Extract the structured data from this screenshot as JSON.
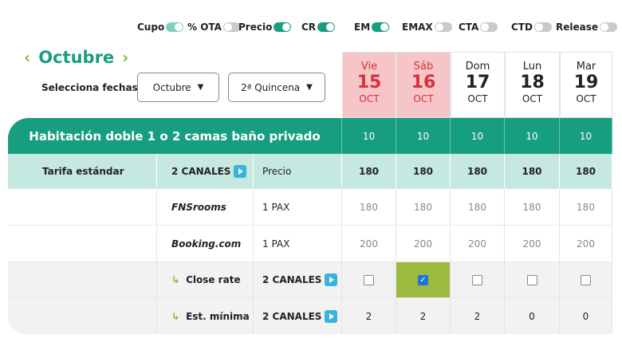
{
  "toggles": [
    {
      "label": "Cupo",
      "state": "on-light"
    },
    {
      "label": "% OTA",
      "state": "off"
    },
    {
      "label": "Precio",
      "state": "on"
    },
    {
      "label": "CR",
      "state": "on"
    },
    {
      "label": "EM",
      "state": "on"
    },
    {
      "label": "EMAX",
      "state": "off"
    },
    {
      "label": "CTA",
      "state": "off"
    },
    {
      "label": "CTD",
      "state": "off"
    },
    {
      "label": "Release",
      "state": "off"
    }
  ],
  "month": {
    "prev_icon": "chevron-left-icon",
    "label": "Octubre",
    "next_icon": "chevron-right-icon"
  },
  "select_label": "Selecciona fechas",
  "month_select": "Octubre",
  "period_select": "2ª Quincena",
  "days": [
    {
      "dow": "Vie",
      "num": "15",
      "mon": "OCT",
      "weekend": true
    },
    {
      "dow": "Sáb",
      "num": "16",
      "mon": "OCT",
      "weekend": true
    },
    {
      "dow": "Dom",
      "num": "17",
      "mon": "OCT"
    },
    {
      "dow": "Lun",
      "num": "18",
      "mon": "OCT"
    },
    {
      "dow": "Mar",
      "num": "19",
      "mon": "OCT"
    }
  ],
  "room": {
    "name": "Habitación doble 1 o 2 camas baño privado",
    "cupo": [
      "10",
      "10",
      "10",
      "10",
      "10"
    ]
  },
  "rate": {
    "name": "Tarifa estándar",
    "channels": "2 CANALES",
    "field": "Precio",
    "values": [
      "180",
      "180",
      "180",
      "180",
      "180"
    ]
  },
  "channels": [
    {
      "name": "FNSrooms",
      "pax": "1 PAX",
      "values": [
        "180",
        "180",
        "180",
        "180",
        "180"
      ]
    },
    {
      "name": "Booking.com",
      "pax": "1 PAX",
      "values": [
        "200",
        "200",
        "200",
        "200",
        "200"
      ]
    }
  ],
  "close_rate": {
    "label": "Close rate",
    "channels": "2 CANALES",
    "checked": [
      false,
      true,
      false,
      false,
      false
    ]
  },
  "min_stay": {
    "label": "Est. mínima",
    "channels": "2 CANALES",
    "values": [
      "2",
      "2",
      "2",
      "0",
      "0"
    ]
  },
  "colors": {
    "primary": "#179e80",
    "rate_row": "#c5e8e0",
    "weekend": "#f5c5c8",
    "checked_cell": "#9bbb3f"
  }
}
